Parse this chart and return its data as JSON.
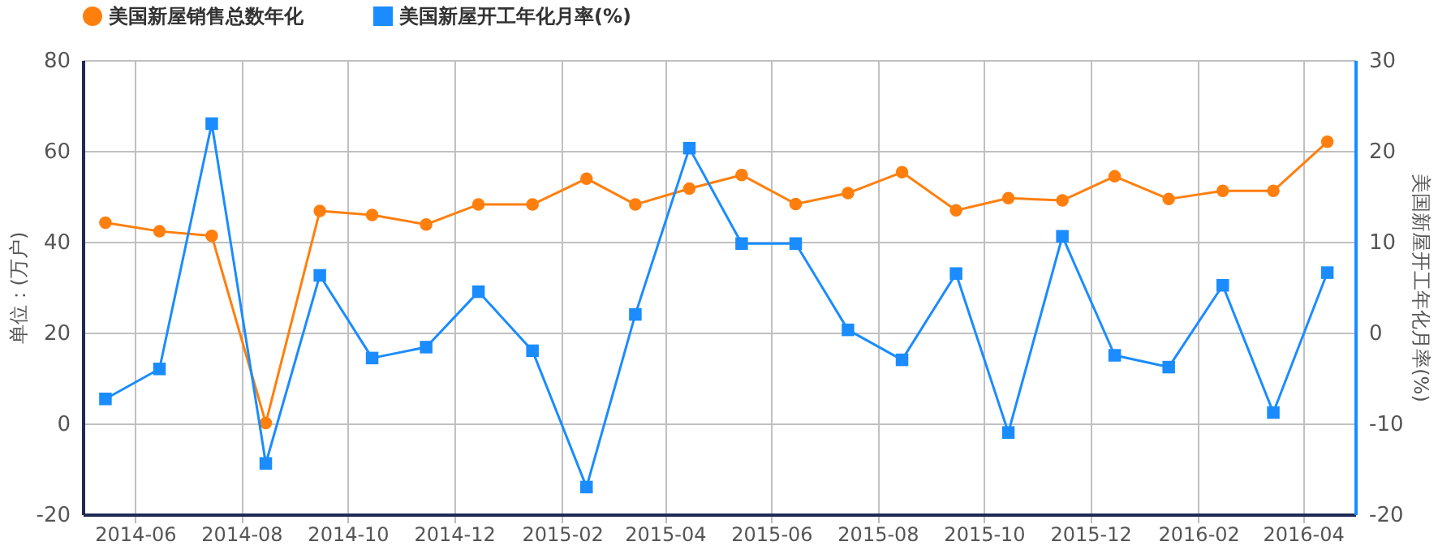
{
  "chart_data": {
    "type": "line",
    "ylabel": "单位：(万户)",
    "y2label": "美国新屋开工年化月率(%)",
    "x": [
      "2014-05-15",
      "2014-06-15",
      "2014-07-15",
      "2014-08-15",
      "2014-09-15",
      "2014-10-15",
      "2014-11-15",
      "2014-12-15",
      "2015-01-15",
      "2015-02-15",
      "2015-03-15",
      "2015-04-15",
      "2015-05-15",
      "2015-06-15",
      "2015-07-15",
      "2015-08-15",
      "2015-09-15",
      "2015-10-15",
      "2015-11-15",
      "2015-12-15",
      "2016-01-15",
      "2016-02-15",
      "2016-03-15",
      "2016-04-15"
    ],
    "series": [
      {
        "name": "美国新屋销售总数年化",
        "color": "#ff7f0e",
        "marker": "circle",
        "values": [
          44.2,
          42.3,
          41.3,
          0.1,
          46.8,
          45.9,
          43.8,
          48.2,
          48.2,
          53.9,
          48.2,
          51.7,
          54.7,
          48.3,
          50.7,
          55.3,
          46.9,
          49.6,
          49.1,
          54.4,
          49.4,
          51.2,
          51.2,
          62.0
        ]
      },
      {
        "name": "美国新屋开工年化月率(%)",
        "color": "#1a8cff",
        "marker": "square",
        "axis": "y2",
        "values": [
          -7.3,
          -4.0,
          23.0,
          -14.4,
          6.3,
          -2.8,
          -1.6,
          4.5,
          -2.0,
          -17.0,
          2.0,
          20.3,
          9.8,
          9.8,
          0.3,
          -3.0,
          6.5,
          -11.0,
          10.6,
          -2.5,
          -3.8,
          5.2,
          -8.8,
          6.6
        ]
      }
    ],
    "xlim": [
      "2014-05-02",
      "2016-05-01"
    ],
    "xticks": [
      "2014-06",
      "2014-08",
      "2014-10",
      "2014-12",
      "2015-02",
      "2015-04",
      "2015-06",
      "2015-08",
      "2015-10",
      "2015-12",
      "2016-02",
      "2016-04"
    ],
    "ylim": [
      -20,
      80
    ],
    "yticks": [
      -20,
      0,
      20,
      40,
      60,
      80
    ],
    "y2lim": [
      -20,
      30
    ],
    "y2ticks": [
      -20,
      -10,
      0,
      10,
      20,
      30
    ],
    "grid": true,
    "legend": "top",
    "line_style": "solid"
  }
}
